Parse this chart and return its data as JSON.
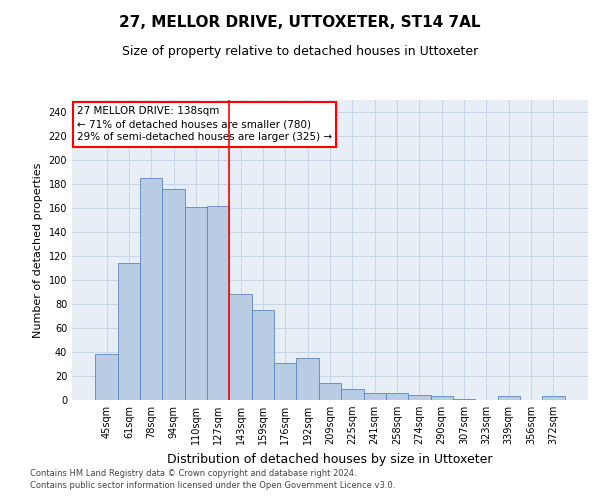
{
  "title": "27, MELLOR DRIVE, UTTOXETER, ST14 7AL",
  "subtitle": "Size of property relative to detached houses in Uttoxeter",
  "xlabel": "Distribution of detached houses by size in Uttoxeter",
  "ylabel": "Number of detached properties",
  "categories": [
    "45sqm",
    "61sqm",
    "78sqm",
    "94sqm",
    "110sqm",
    "127sqm",
    "143sqm",
    "159sqm",
    "176sqm",
    "192sqm",
    "209sqm",
    "225sqm",
    "241sqm",
    "258sqm",
    "274sqm",
    "290sqm",
    "307sqm",
    "323sqm",
    "339sqm",
    "356sqm",
    "372sqm"
  ],
  "values": [
    38,
    114,
    185,
    176,
    161,
    162,
    88,
    75,
    31,
    35,
    14,
    9,
    6,
    6,
    4,
    3,
    1,
    0,
    3,
    0,
    3
  ],
  "bar_color": "#b8cce4",
  "bar_edge_color": "#5a86c0",
  "bar_edge_width": 0.6,
  "vline_x": 5.5,
  "vline_color": "red",
  "vline_linewidth": 1.2,
  "annotation_line1": "27 MELLOR DRIVE: 138sqm",
  "annotation_line2": "← 71% of detached houses are smaller (780)",
  "annotation_line3": "29% of semi-detached houses are larger (325) →",
  "ylim": [
    0,
    250
  ],
  "yticks": [
    0,
    20,
    40,
    60,
    80,
    100,
    120,
    140,
    160,
    180,
    200,
    220,
    240
  ],
  "grid_color": "#c8d4e8",
  "background_color": "#e8eef6",
  "footer_line1": "Contains HM Land Registry data © Crown copyright and database right 2024.",
  "footer_line2": "Contains public sector information licensed under the Open Government Licence v3.0.",
  "title_fontsize": 11,
  "subtitle_fontsize": 9,
  "xlabel_fontsize": 9,
  "ylabel_fontsize": 8,
  "tick_fontsize": 7,
  "footer_fontsize": 6,
  "annotation_fontsize": 7.5
}
